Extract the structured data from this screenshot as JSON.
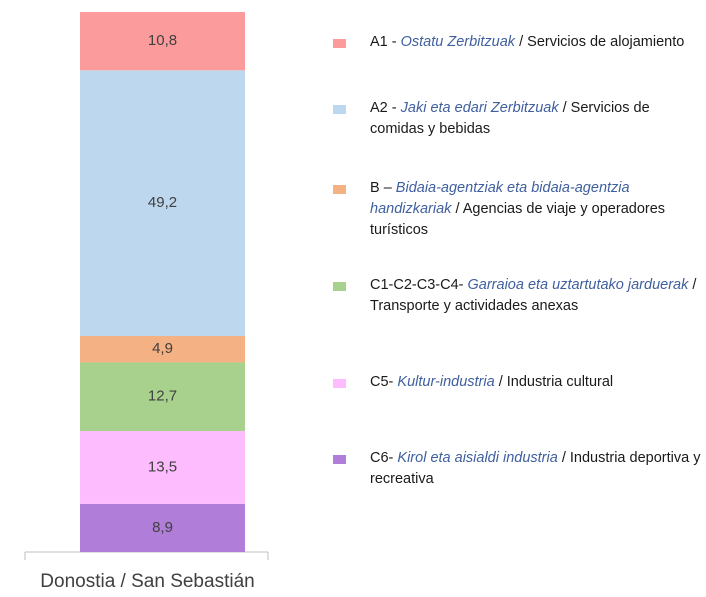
{
  "chart_data": {
    "type": "stacked_bar",
    "categories": [
      "Donostia / San Sebastián"
    ],
    "ylim": [
      0,
      100
    ],
    "series": [
      {
        "name": [
          "A1 - ",
          "Ostatu Zerbitzuak",
          " / Servicios de alojamiento"
        ],
        "color": "#fc9b9c",
        "values": [
          10.8
        ],
        "value_labels": [
          "10,8"
        ]
      },
      {
        "name": [
          "A2 - ",
          "Jaki eta edari Zerbitzuak",
          " / Servicios de comidas y bebidas"
        ],
        "color": "#bdd7ee",
        "values": [
          49.2
        ],
        "value_labels": [
          "49,2"
        ]
      },
      {
        "name": [
          "B – ",
          "Bidaia-agentziak eta bidaia-agentzia handizkariak",
          " / Agencias de viaje y operadores turísticos"
        ],
        "color": "#f4b183",
        "values": [
          4.9
        ],
        "value_labels": [
          "4,9"
        ]
      },
      {
        "name": [
          "C1-C2-C3-C4- ",
          "Garraioa eta uztartutako jarduerak",
          " / Transporte y actividades anexas"
        ],
        "color": "#a9d18e",
        "values": [
          12.7
        ],
        "value_labels": [
          "12,7"
        ]
      },
      {
        "name": [
          "C5- ",
          "Kultur-industria",
          " / Industria cultural"
        ],
        "color": "#fcbcfd",
        "values": [
          13.5
        ],
        "value_labels": [
          "13,5"
        ]
      },
      {
        "name": [
          "C6- ",
          "Kirol eta aisialdi industria",
          " / Industria deportiva y recreativa"
        ],
        "color": "#b07dd9",
        "values": [
          8.9
        ],
        "value_labels": [
          "8,9"
        ]
      }
    ]
  }
}
